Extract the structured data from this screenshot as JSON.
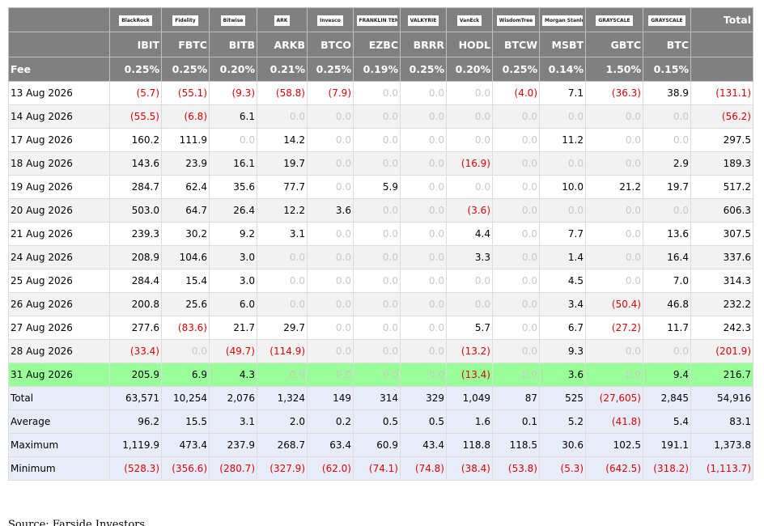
{
  "table": {
    "logos": [
      "BlackRock",
      "Fidelity",
      "Bitwise",
      "ARK",
      "Invesco",
      "FRANKLIN TEMPLETON",
      "VALKYRIE",
      "VanEck",
      "WisdomTree",
      "Morgan Stanley",
      "GRAYSCALE",
      "GRAYSCALE"
    ],
    "total_header": "Total",
    "tickers": [
      "IBIT",
      "FBTC",
      "BITB",
      "ARKB",
      "BTCO",
      "EZBC",
      "BRRR",
      "HODL",
      "BTCW",
      "MSBT",
      "GBTC",
      "BTC"
    ],
    "fee_label": "Fee",
    "fees": [
      "0.25%",
      "0.25%",
      "0.20%",
      "0.21%",
      "0.25%",
      "0.19%",
      "0.25%",
      "0.20%",
      "0.25%",
      "0.14%",
      "1.50%",
      "0.15%"
    ],
    "rows": [
      {
        "date": "13 Aug 2026",
        "values": [
          "(5.7)",
          "(55.1)",
          "(9.3)",
          "(58.8)",
          "(7.9)",
          "0.0",
          "0.0",
          "0.0",
          "(4.0)",
          "7.1",
          "(36.3)",
          "38.9",
          "(131.1)"
        ]
      },
      {
        "date": "14 Aug 2026",
        "values": [
          "(55.5)",
          "(6.8)",
          "6.1",
          "0.0",
          "0.0",
          "0.0",
          "0.0",
          "0.0",
          "0.0",
          "0.0",
          "0.0",
          "0.0",
          "(56.2)"
        ]
      },
      {
        "date": "17 Aug 2026",
        "values": [
          "160.2",
          "111.9",
          "0.0",
          "14.2",
          "0.0",
          "0.0",
          "0.0",
          "0.0",
          "0.0",
          "11.2",
          "0.0",
          "0.0",
          "297.5"
        ]
      },
      {
        "date": "18 Aug 2026",
        "values": [
          "143.6",
          "23.9",
          "16.1",
          "19.7",
          "0.0",
          "0.0",
          "0.0",
          "(16.9)",
          "0.0",
          "0.0",
          "0.0",
          "2.9",
          "189.3"
        ]
      },
      {
        "date": "19 Aug 2026",
        "values": [
          "284.7",
          "62.4",
          "35.6",
          "77.7",
          "0.0",
          "5.9",
          "0.0",
          "0.0",
          "0.0",
          "10.0",
          "21.2",
          "19.7",
          "517.2"
        ]
      },
      {
        "date": "20 Aug 2026",
        "values": [
          "503.0",
          "64.7",
          "26.4",
          "12.2",
          "3.6",
          "0.0",
          "0.0",
          "(3.6)",
          "0.0",
          "0.0",
          "0.0",
          "0.0",
          "606.3"
        ]
      },
      {
        "date": "21 Aug 2026",
        "values": [
          "239.3",
          "30.2",
          "9.2",
          "3.1",
          "0.0",
          "0.0",
          "0.0",
          "4.4",
          "0.0",
          "7.7",
          "0.0",
          "13.6",
          "307.5"
        ]
      },
      {
        "date": "24 Aug 2026",
        "values": [
          "208.9",
          "104.6",
          "3.0",
          "0.0",
          "0.0",
          "0.0",
          "0.0",
          "3.3",
          "0.0",
          "1.4",
          "0.0",
          "16.4",
          "337.6"
        ]
      },
      {
        "date": "25 Aug 2026",
        "values": [
          "284.4",
          "15.4",
          "3.0",
          "0.0",
          "0.0",
          "0.0",
          "0.0",
          "0.0",
          "0.0",
          "4.5",
          "0.0",
          "7.0",
          "314.3"
        ]
      },
      {
        "date": "26 Aug 2026",
        "values": [
          "200.8",
          "25.6",
          "6.0",
          "0.0",
          "0.0",
          "0.0",
          "0.0",
          "0.0",
          "0.0",
          "3.4",
          "(50.4)",
          "46.8",
          "232.2"
        ]
      },
      {
        "date": "27 Aug 2026",
        "values": [
          "277.6",
          "(83.6)",
          "21.7",
          "29.7",
          "0.0",
          "0.0",
          "0.0",
          "5.7",
          "0.0",
          "6.7",
          "(27.2)",
          "11.7",
          "242.3"
        ]
      },
      {
        "date": "28 Aug 2026",
        "values": [
          "(33.4)",
          "0.0",
          "(49.7)",
          "(114.9)",
          "0.0",
          "0.0",
          "0.0",
          "(13.2)",
          "0.0",
          "9.3",
          "0.0",
          "0.0",
          "(201.9)"
        ]
      },
      {
        "date": "31 Aug 2026",
        "values": [
          "205.9",
          "6.9",
          "4.3",
          "0.0",
          "0.0",
          "0.0",
          "0.0",
          "(13.4)",
          "0.0",
          "3.6",
          "0.0",
          "9.4",
          "216.7"
        ]
      }
    ],
    "summary": [
      {
        "label": "Total",
        "values": [
          "63,571",
          "10,254",
          "2,076",
          "1,324",
          "149",
          "314",
          "329",
          "1,049",
          "87",
          "525",
          "(27,605)",
          "2,845",
          "54,916"
        ]
      },
      {
        "label": "Average",
        "values": [
          "96.2",
          "15.5",
          "3.1",
          "2.0",
          "0.2",
          "0.5",
          "0.5",
          "1.6",
          "0.1",
          "5.2",
          "(41.8)",
          "5.4",
          "83.1"
        ]
      },
      {
        "label": "Maximum",
        "values": [
          "1,119.9",
          "473.4",
          "237.9",
          "268.7",
          "63.4",
          "60.9",
          "43.4",
          "118.8",
          "118.5",
          "30.6",
          "102.5",
          "191.1",
          "1,373.8"
        ]
      },
      {
        "label": "Minimum",
        "values": [
          "(528.3)",
          "(356.6)",
          "(280.7)",
          "(327.9)",
          "(62.0)",
          "(74.1)",
          "(74.8)",
          "(38.4)",
          "(53.8)",
          "(5.3)",
          "(642.5)",
          "(318.2)",
          "(1,113.7)"
        ]
      }
    ]
  },
  "source": "Source: Farside Investors"
}
